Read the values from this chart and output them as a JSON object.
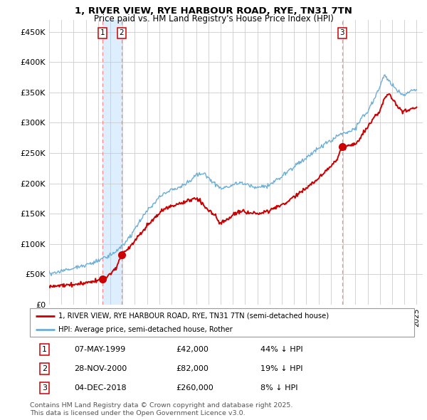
{
  "title_line1": "1, RIVER VIEW, RYE HARBOUR ROAD, RYE, TN31 7TN",
  "title_line2": "Price paid vs. HM Land Registry's House Price Index (HPI)",
  "xlim_start": 1995.0,
  "xlim_end": 2025.5,
  "ylim_min": 0,
  "ylim_max": 470000,
  "yticks": [
    0,
    50000,
    100000,
    150000,
    200000,
    250000,
    300000,
    350000,
    400000,
    450000
  ],
  "ytick_labels": [
    "£0",
    "£50K",
    "£100K",
    "£150K",
    "£200K",
    "£250K",
    "£300K",
    "£350K",
    "£400K",
    "£450K"
  ],
  "sale_dates": [
    1999.35,
    2000.91,
    2018.92
  ],
  "sale_prices": [
    42000,
    82000,
    260000
  ],
  "sale_labels": [
    "1",
    "2",
    "3"
  ],
  "legend_line1": "1, RIVER VIEW, RYE HARBOUR ROAD, RYE, TN31 7TN (semi-detached house)",
  "legend_line2": "HPI: Average price, semi-detached house, Rother",
  "table_data": [
    [
      "1",
      "07-MAY-1999",
      "£42,000",
      "44% ↓ HPI"
    ],
    [
      "2",
      "28-NOV-2000",
      "£82,000",
      "19% ↓ HPI"
    ],
    [
      "3",
      "04-DEC-2018",
      "£260,000",
      "8% ↓ HPI"
    ]
  ],
  "footnote": "Contains HM Land Registry data © Crown copyright and database right 2025.\nThis data is licensed under the Open Government Licence v3.0.",
  "hpi_color": "#6baed6",
  "sale_color": "#cc0000",
  "shade_color": "#ddeeff",
  "vline_color": "#ff8888",
  "background_color": "#ffffff",
  "grid_color": "#cccccc",
  "hpi_anchors": [
    [
      1995.0,
      52000
    ],
    [
      1995.5,
      53000
    ],
    [
      1996.0,
      55000
    ],
    [
      1996.5,
      57000
    ],
    [
      1997.0,
      60000
    ],
    [
      1997.5,
      63000
    ],
    [
      1998.0,
      65000
    ],
    [
      1998.5,
      68000
    ],
    [
      1999.0,
      72000
    ],
    [
      1999.5,
      77000
    ],
    [
      2000.0,
      82000
    ],
    [
      2000.5,
      88000
    ],
    [
      2001.0,
      98000
    ],
    [
      2001.5,
      108000
    ],
    [
      2002.0,
      125000
    ],
    [
      2002.5,
      140000
    ],
    [
      2003.0,
      155000
    ],
    [
      2003.5,
      165000
    ],
    [
      2004.0,
      178000
    ],
    [
      2004.5,
      185000
    ],
    [
      2005.0,
      188000
    ],
    [
      2005.5,
      192000
    ],
    [
      2006.0,
      198000
    ],
    [
      2006.5,
      205000
    ],
    [
      2007.0,
      213000
    ],
    [
      2007.5,
      218000
    ],
    [
      2008.0,
      210000
    ],
    [
      2008.5,
      200000
    ],
    [
      2009.0,
      192000
    ],
    [
      2009.5,
      193000
    ],
    [
      2010.0,
      198000
    ],
    [
      2010.5,
      200000
    ],
    [
      2011.0,
      198000
    ],
    [
      2011.5,
      196000
    ],
    [
      2012.0,
      193000
    ],
    [
      2012.5,
      194000
    ],
    [
      2013.0,
      198000
    ],
    [
      2013.5,
      205000
    ],
    [
      2014.0,
      212000
    ],
    [
      2014.5,
      220000
    ],
    [
      2015.0,
      228000
    ],
    [
      2015.5,
      235000
    ],
    [
      2016.0,
      242000
    ],
    [
      2016.5,
      250000
    ],
    [
      2017.0,
      258000
    ],
    [
      2017.5,
      265000
    ],
    [
      2018.0,
      270000
    ],
    [
      2018.5,
      278000
    ],
    [
      2019.0,
      282000
    ],
    [
      2019.5,
      285000
    ],
    [
      2020.0,
      292000
    ],
    [
      2020.5,
      308000
    ],
    [
      2021.0,
      320000
    ],
    [
      2021.5,
      338000
    ],
    [
      2022.0,
      358000
    ],
    [
      2022.3,
      378000
    ],
    [
      2022.7,
      372000
    ],
    [
      2023.0,
      362000
    ],
    [
      2023.5,
      352000
    ],
    [
      2024.0,
      345000
    ],
    [
      2024.5,
      352000
    ],
    [
      2025.0,
      355000
    ]
  ],
  "price_anchors": [
    [
      1995.0,
      30000
    ],
    [
      1995.5,
      30500
    ],
    [
      1996.0,
      31000
    ],
    [
      1996.5,
      32000
    ],
    [
      1997.0,
      33000
    ],
    [
      1997.5,
      34500
    ],
    [
      1998.0,
      36000
    ],
    [
      1998.5,
      38000
    ],
    [
      1999.0,
      40000
    ],
    [
      1999.35,
      42000
    ],
    [
      1999.5,
      43000
    ],
    [
      2000.0,
      50000
    ],
    [
      2000.5,
      62000
    ],
    [
      2000.91,
      82000
    ],
    [
      2001.0,
      85000
    ],
    [
      2001.5,
      92000
    ],
    [
      2002.0,
      105000
    ],
    [
      2002.5,
      118000
    ],
    [
      2003.0,
      130000
    ],
    [
      2003.5,
      140000
    ],
    [
      2004.0,
      150000
    ],
    [
      2004.5,
      158000
    ],
    [
      2005.0,
      162000
    ],
    [
      2005.5,
      165000
    ],
    [
      2006.0,
      168000
    ],
    [
      2006.5,
      172000
    ],
    [
      2007.0,
      175000
    ],
    [
      2007.3,
      172000
    ],
    [
      2007.8,
      160000
    ],
    [
      2008.0,
      155000
    ],
    [
      2008.5,
      148000
    ],
    [
      2008.9,
      135000
    ],
    [
      2009.0,
      133000
    ],
    [
      2009.5,
      140000
    ],
    [
      2010.0,
      148000
    ],
    [
      2010.5,
      152000
    ],
    [
      2011.0,
      153000
    ],
    [
      2011.5,
      152000
    ],
    [
      2012.0,
      150000
    ],
    [
      2012.5,
      152000
    ],
    [
      2013.0,
      155000
    ],
    [
      2013.5,
      160000
    ],
    [
      2014.0,
      165000
    ],
    [
      2014.5,
      170000
    ],
    [
      2015.0,
      178000
    ],
    [
      2015.5,
      185000
    ],
    [
      2016.0,
      192000
    ],
    [
      2016.5,
      200000
    ],
    [
      2017.0,
      208000
    ],
    [
      2017.5,
      218000
    ],
    [
      2018.0,
      228000
    ],
    [
      2018.5,
      238000
    ],
    [
      2018.92,
      260000
    ],
    [
      2019.0,
      258000
    ],
    [
      2019.5,
      262000
    ],
    [
      2020.0,
      265000
    ],
    [
      2020.5,
      278000
    ],
    [
      2021.0,
      292000
    ],
    [
      2021.5,
      308000
    ],
    [
      2022.0,
      320000
    ],
    [
      2022.3,
      338000
    ],
    [
      2022.7,
      348000
    ],
    [
      2023.0,
      340000
    ],
    [
      2023.5,
      325000
    ],
    [
      2024.0,
      318000
    ],
    [
      2024.5,
      322000
    ],
    [
      2025.0,
      325000
    ]
  ]
}
